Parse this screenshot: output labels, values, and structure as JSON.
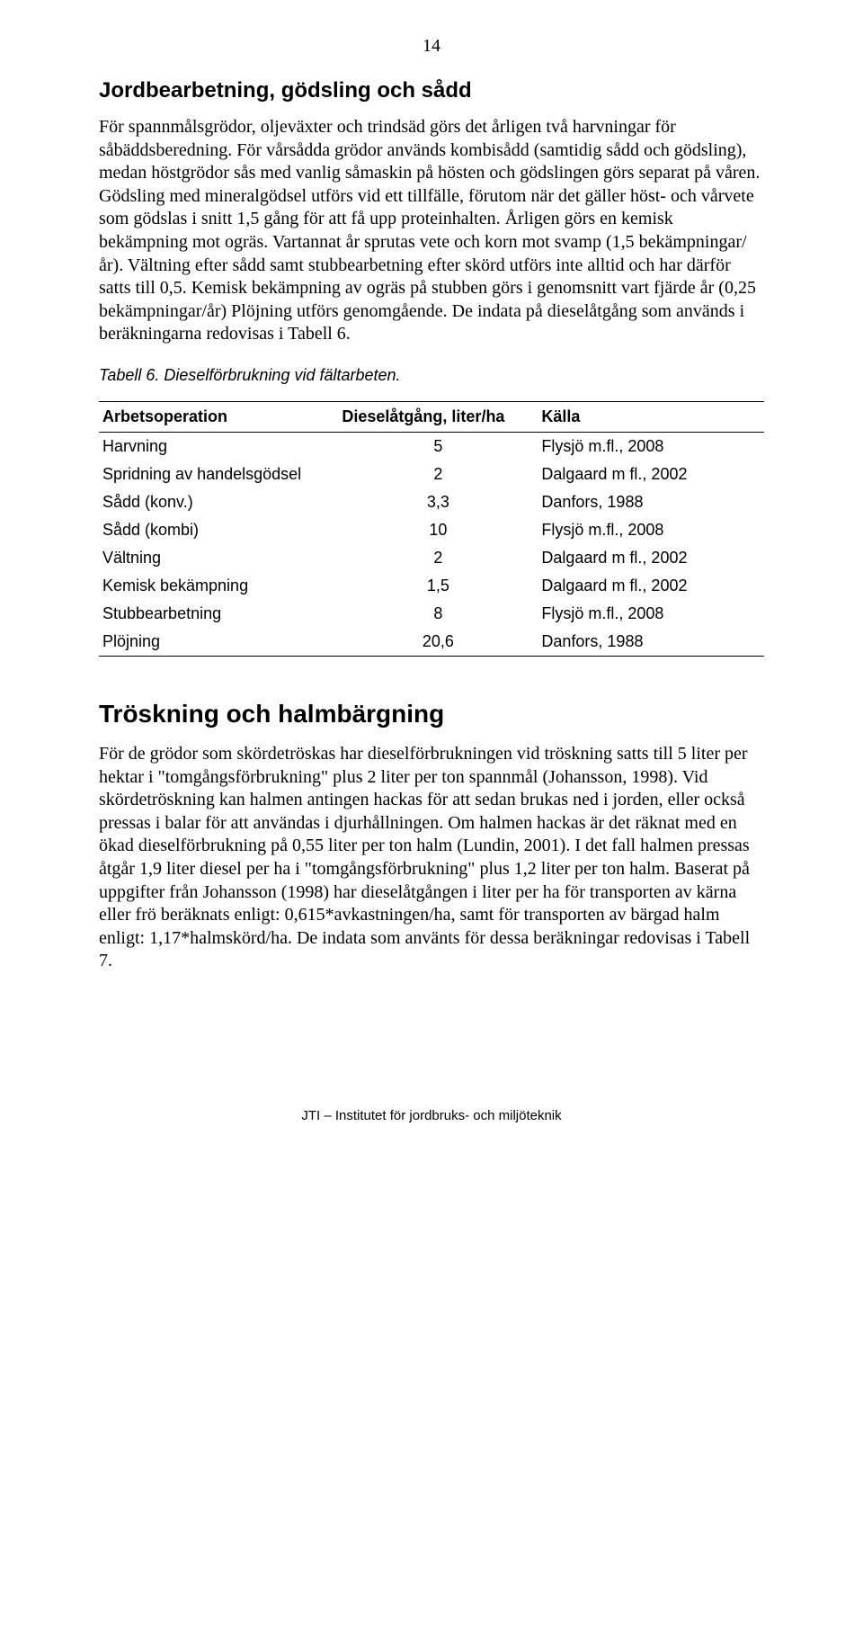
{
  "page_number": "14",
  "section1": {
    "heading": "Jordbearbetning, gödsling och sådd",
    "paragraph": "För spannmålsgrödor, oljeväxter och trindsäd görs det årligen två harvningar för såbäddsberedning. För vårsådda grödor används kombisådd (samtidig sådd och gödsling), medan höstgrödor sås med vanlig såmaskin på hösten och gödslingen görs separat på våren. Gödsling med mineralgödsel utförs vid ett tillfälle, förutom när det gäller höst- och vårvete som gödslas i snitt 1,5 gång för att få upp protein­halten. Årligen görs en kemisk bekämpning mot ogräs. Vartannat år sprutas vete och korn mot svamp (1,5 bekämpningar/år). Vältning efter sådd samt stubbearbet­ning efter skörd utförs inte alltid och har därför satts till 0,5. Kemisk bekämpning av ogräs på stubben görs i genomsnitt vart fjärde år (0,25 bekämpningar/år) Plöj­ning utförs genomgående. De indata på dieselåtgång som används i beräkningarna redovisas i Tabell 6."
  },
  "table6": {
    "caption": "Tabell 6. Dieselförbrukning vid fältarbeten.",
    "columns": [
      "Arbetsoperation",
      "Dieselåtgång, liter/ha",
      "Källa"
    ],
    "rows": [
      [
        "Harvning",
        "5",
        "Flysjö m.fl., 2008"
      ],
      [
        "Spridning av handelsgödsel",
        "2",
        "Dalgaard m fl., 2002"
      ],
      [
        "Sådd (konv.)",
        "3,3",
        "Danfors, 1988"
      ],
      [
        "Sådd (kombi)",
        "10",
        "Flysjö m.fl., 2008"
      ],
      [
        "Vältning",
        "2",
        "Dalgaard m fl., 2002"
      ],
      [
        "Kemisk bekämpning",
        "1,5",
        "Dalgaard m fl., 2002"
      ],
      [
        "Stubbearbetning",
        "8",
        "Flysjö m.fl., 2008"
      ],
      [
        "Plöjning",
        "20,6",
        "Danfors, 1988"
      ]
    ]
  },
  "section2": {
    "heading": "Tröskning och halmbärgning",
    "paragraph": "För de grödor som skördetröskas har dieselförbrukningen vid tröskning satts till 5 liter per hektar i \"tomgångsförbrukning\" plus 2 liter per ton spannmål (Johansson, 1998). Vid skördetröskning kan halmen antingen hackas för att sedan brukas ned i jorden, eller också pressas i balar för att användas i djurhållningen. Om halmen hackas är det räknat med en ökad dieselförbrukning på 0,55 liter per ton halm (Lundin, 2001). I det fall halmen pressas åtgår 1,9 liter diesel per ha i \"tomgångsförbrukning\" plus 1,2 liter per ton halm. Baserat på uppgifter från Johansson (1998) har dieselåtgången i liter per ha för transporten av kärna eller frö beräknats enligt: 0,615*avkastningen/ha, samt för transporten av bärgad halm enligt: 1,17*halmskörd/ha. De indata som använts för dessa beräkningar redovisas i Tabell 7."
  },
  "footer": "JTI – Institutet för jordbruks- och miljöteknik"
}
